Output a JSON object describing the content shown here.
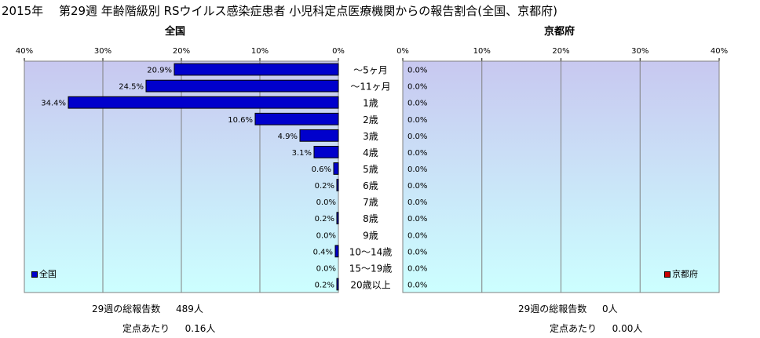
{
  "title": "2015年　 第29週 年齢階級別 RSウイルス感染症患者 小児科定点医療機関からの報告割合(全国、京都府)",
  "chart_data": [
    {
      "type": "bar",
      "orientation": "horizontal",
      "title": "全国",
      "categories": [
        "～5ヶ月",
        "～11ヶ月",
        "1歳",
        "2歳",
        "3歳",
        "4歳",
        "5歳",
        "6歳",
        "7歳",
        "8歳",
        "9歳",
        "10～14歳",
        "15～19歳",
        "20歳以上"
      ],
      "series": [
        {
          "name": "全国",
          "values": [
            20.9,
            24.5,
            34.4,
            10.6,
            4.9,
            3.1,
            0.6,
            0.2,
            0.0,
            0.2,
            0.0,
            0.4,
            0.0,
            0.2
          ]
        }
      ],
      "data_labels": [
        "20.9%",
        "24.5%",
        "34.4%",
        "10.6%",
        "4.9%",
        "3.1%",
        "0.6%",
        "0.2%",
        "0.0%",
        "0.2%",
        "0.0%",
        "0.4%",
        "0.0%",
        "0.2%"
      ],
      "xlim": [
        0,
        40
      ],
      "x_reversed": true,
      "xticks": [
        "40%",
        "30%",
        "20%",
        "10%",
        "0%"
      ],
      "grid": true,
      "legend_position": "bottom-left",
      "bar_color": "#0000cc"
    },
    {
      "type": "bar",
      "orientation": "horizontal",
      "title": "京都府",
      "categories": [
        "～5ヶ月",
        "～11ヶ月",
        "1歳",
        "2歳",
        "3歳",
        "4歳",
        "5歳",
        "6歳",
        "7歳",
        "8歳",
        "9歳",
        "10～14歳",
        "15～19歳",
        "20歳以上"
      ],
      "series": [
        {
          "name": "京都府",
          "values": [
            0,
            0,
            0,
            0,
            0,
            0,
            0,
            0,
            0,
            0,
            0,
            0,
            0,
            0
          ]
        }
      ],
      "data_labels": [
        "0.0%",
        "0.0%",
        "0.0%",
        "0.0%",
        "0.0%",
        "0.0%",
        "0.0%",
        "0.0%",
        "0.0%",
        "0.0%",
        "0.0%",
        "0.0%",
        "0.0%",
        "0.0%"
      ],
      "xlim": [
        0,
        40
      ],
      "x_reversed": false,
      "xticks": [
        "0%",
        "10%",
        "20%",
        "30%",
        "40%"
      ],
      "grid": true,
      "legend_position": "bottom-right",
      "bar_color": "#cc0000"
    }
  ],
  "footer": {
    "left": {
      "total_label": "29週の総報告数",
      "total_value": "489人",
      "per_label": "定点あたり",
      "per_value": "0.16人"
    },
    "right": {
      "total_label": "29週の総報告数",
      "total_value": "0人",
      "per_label": "定点あたり",
      "per_value": "0.00人"
    }
  },
  "colors": {
    "plot_top": "#c8c8f0",
    "plot_bottom": "#ccffff",
    "grid": "#808080"
  }
}
